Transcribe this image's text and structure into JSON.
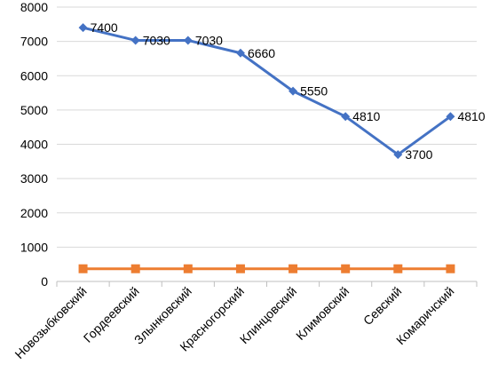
{
  "chart_data": {
    "type": "line",
    "title": "",
    "xlabel": "",
    "ylabel": "",
    "ylim": [
      0,
      8000
    ],
    "yticks": [
      0,
      1000,
      2000,
      3000,
      4000,
      5000,
      6000,
      7000,
      8000
    ],
    "grid": "horizontal",
    "legend": "none",
    "categories": [
      "Новозыбковский",
      "Гордеевский",
      "Злынковский",
      "Красногорский",
      "Клинцовский",
      "Климовский",
      "Севский",
      "Комаричский"
    ],
    "series": [
      {
        "color": "#4472C4",
        "marker": "diamond",
        "values": [
          7400,
          7030,
          7030,
          6660,
          5550,
          4810,
          3700,
          4810
        ],
        "data_labels": [
          "7400",
          "7030",
          "7030",
          "6660",
          "5550",
          "4810",
          "3700",
          "4810"
        ]
      },
      {
        "color": "#ED7D31",
        "marker": "square",
        "values": [
          370,
          370,
          370,
          370,
          370,
          370,
          370,
          370
        ]
      }
    ]
  }
}
